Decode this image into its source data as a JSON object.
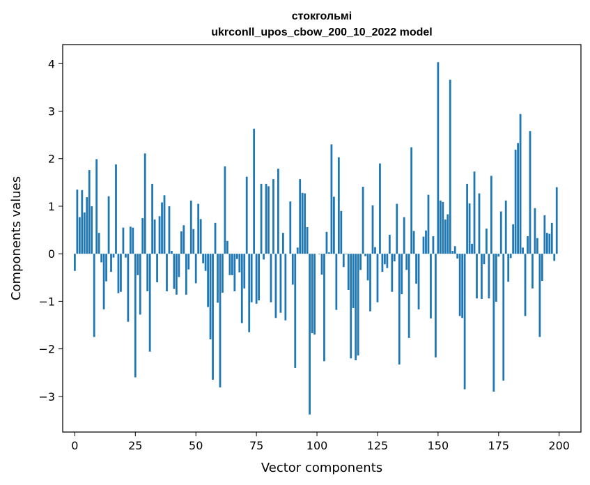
{
  "chart_data": {
    "type": "bar",
    "title": "стокгольмі",
    "subtitle": "ukrconll_upos_cbow_200_10_2022 model",
    "xlabel": "Vector components",
    "ylabel": "Components values",
    "xlim": [
      -5,
      209
    ],
    "ylim": [
      -3.75,
      4.4
    ],
    "xticks": [
      0,
      25,
      50,
      75,
      100,
      125,
      150,
      175,
      200
    ],
    "yticks": [
      -3,
      -2,
      -1,
      0,
      1,
      2,
      3,
      4
    ],
    "bar_color": "#1f77b4",
    "grid": false,
    "x": [
      0,
      1,
      2,
      3,
      4,
      5,
      6,
      7,
      8,
      9,
      10,
      11,
      12,
      13,
      14,
      15,
      16,
      17,
      18,
      19,
      20,
      21,
      22,
      23,
      24,
      25,
      26,
      27,
      28,
      29,
      30,
      31,
      32,
      33,
      34,
      35,
      36,
      37,
      38,
      39,
      40,
      41,
      42,
      43,
      44,
      45,
      46,
      47,
      48,
      49,
      50,
      51,
      52,
      53,
      54,
      55,
      56,
      57,
      58,
      59,
      60,
      61,
      62,
      63,
      64,
      65,
      66,
      67,
      68,
      69,
      70,
      71,
      72,
      73,
      74,
      75,
      76,
      77,
      78,
      79,
      80,
      81,
      82,
      83,
      84,
      85,
      86,
      87,
      88,
      89,
      90,
      91,
      92,
      93,
      94,
      95,
      96,
      97,
      98,
      99,
      100,
      101,
      102,
      103,
      104,
      105,
      106,
      107,
      108,
      109,
      110,
      111,
      112,
      113,
      114,
      115,
      116,
      117,
      118,
      119,
      120,
      121,
      122,
      123,
      124,
      125,
      126,
      127,
      128,
      129,
      130,
      131,
      132,
      133,
      134,
      135,
      136,
      137,
      138,
      139,
      140,
      141,
      142,
      143,
      144,
      145,
      146,
      147,
      148,
      149,
      150,
      151,
      152,
      153,
      154,
      155,
      156,
      157,
      158,
      159,
      160,
      161,
      162,
      163,
      164,
      165,
      166,
      167,
      168,
      169,
      170,
      171,
      172,
      173,
      174,
      175,
      176,
      177,
      178,
      179,
      180,
      181,
      182,
      183,
      184,
      185,
      186,
      187,
      188,
      189,
      190,
      191,
      192,
      193,
      194,
      195,
      196,
      197,
      198,
      199
    ],
    "values": [
      -0.36,
      1.35,
      0.77,
      1.34,
      0.87,
      1.19,
      1.76,
      1.0,
      -1.75,
      1.99,
      0.44,
      -0.18,
      -1.17,
      -0.58,
      1.21,
      -0.38,
      -0.08,
      1.88,
      -0.83,
      -0.8,
      0.55,
      -0.08,
      -1.43,
      0.57,
      0.55,
      -2.6,
      -0.45,
      -1.28,
      0.75,
      2.11,
      -0.79,
      -2.06,
      1.47,
      0.72,
      -0.6,
      0.79,
      1.08,
      1.23,
      -0.79,
      1.0,
      0.06,
      -0.74,
      -0.86,
      -0.49,
      0.47,
      0.6,
      -0.86,
      -0.33,
      1.12,
      0.52,
      -0.62,
      1.05,
      0.73,
      -0.2,
      -0.36,
      -1.12,
      -1.8,
      -2.65,
      0.65,
      -1.03,
      -2.81,
      -0.82,
      1.84,
      0.27,
      -0.45,
      -0.45,
      -0.79,
      -0.11,
      -0.39,
      -1.46,
      -0.73,
      1.62,
      -1.65,
      -1.02,
      2.63,
      -1.05,
      -0.98,
      1.47,
      -0.12,
      1.47,
      1.42,
      -1.02,
      1.57,
      -1.35,
      1.79,
      -1.24,
      0.44,
      -1.4,
      0.0,
      1.1,
      -0.65,
      -2.4,
      0.13,
      1.57,
      1.28,
      1.27,
      0.56,
      -3.38,
      -1.67,
      -1.7,
      0.0,
      -0.01,
      -0.44,
      -2.26,
      0.46,
      0.03,
      2.3,
      1.2,
      -1.18,
      2.03,
      0.9,
      -0.28,
      -0.01,
      -0.76,
      -2.2,
      -1.14,
      -2.24,
      -2.14,
      -0.34,
      1.41,
      -0.05,
      -0.56,
      -1.21,
      1.02,
      0.14,
      -1.02,
      1.9,
      -0.38,
      -0.22,
      -0.3,
      0.4,
      -0.8,
      -0.16,
      1.05,
      -2.33,
      -0.85,
      0.77,
      -0.34,
      -1.77,
      2.24,
      0.48,
      -0.63,
      -1.17,
      0.0,
      0.36,
      0.49,
      1.24,
      -1.36,
      0.37,
      -2.18,
      4.03,
      1.12,
      1.09,
      0.72,
      0.83,
      3.66,
      0.06,
      0.16,
      -0.1,
      -1.31,
      -1.35,
      -2.85,
      1.47,
      1.06,
      0.21,
      1.73,
      -0.94,
      1.27,
      -0.95,
      -0.22,
      0.53,
      -0.94,
      1.64,
      -2.9,
      -1.01,
      -0.06,
      0.89,
      -2.67,
      1.12,
      -0.59,
      -0.09,
      0.62,
      2.19,
      2.33,
      2.94,
      0.13,
      -1.31,
      0.37,
      2.58,
      -0.73,
      0.96,
      0.33,
      -1.75,
      -0.57,
      0.81,
      0.44,
      0.42,
      0.65,
      -0.15,
      1.4
    ]
  }
}
